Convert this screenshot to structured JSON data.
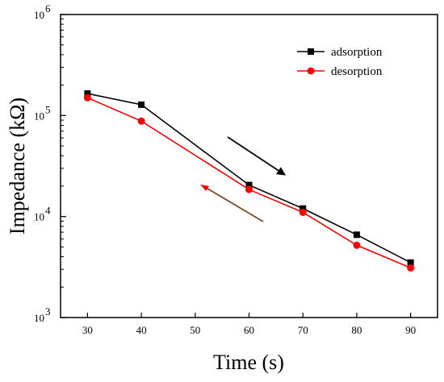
{
  "chart_data": {
    "type": "line",
    "title": "",
    "xlabel": "Time (s)",
    "ylabel": "Impedance (kΩ)",
    "xlim": [
      25,
      95
    ],
    "ylim": [
      1000,
      1000000
    ],
    "y_scale": "log",
    "x_ticks": [
      30,
      40,
      50,
      60,
      70,
      80,
      90
    ],
    "x_tick_labels": [
      "30",
      "40",
      "50",
      "60",
      "70",
      "80",
      "90"
    ],
    "y_tick_labels": [
      {
        "value": 1000,
        "base": "10",
        "exp": "3"
      },
      {
        "value": 10000,
        "base": "10",
        "exp": "4"
      },
      {
        "value": 100000,
        "base": "10",
        "exp": "5"
      },
      {
        "value": 1000000,
        "base": "10",
        "exp": "6"
      }
    ],
    "grid": false,
    "legend_position": "top-right",
    "series": [
      {
        "name": "adsorption",
        "color": "#000000",
        "marker": "square",
        "x": [
          30,
          40,
          60,
          70,
          80,
          90
        ],
        "y": [
          165000,
          128000,
          20500,
          12000,
          6600,
          3500
        ]
      },
      {
        "name": "desorption",
        "color": "#ff0000",
        "marker": "circle",
        "x": [
          30,
          40,
          60,
          70,
          80,
          90
        ],
        "y": [
          150000,
          88000,
          18500,
          11000,
          5200,
          3100
        ]
      }
    ],
    "annotations": [
      {
        "type": "arrow",
        "meaning": "adsorption direction (increasing time)",
        "color": "#000000"
      },
      {
        "type": "arrow",
        "meaning": "desorption direction (decreasing time)",
        "color": "#7a4a2a"
      }
    ]
  }
}
